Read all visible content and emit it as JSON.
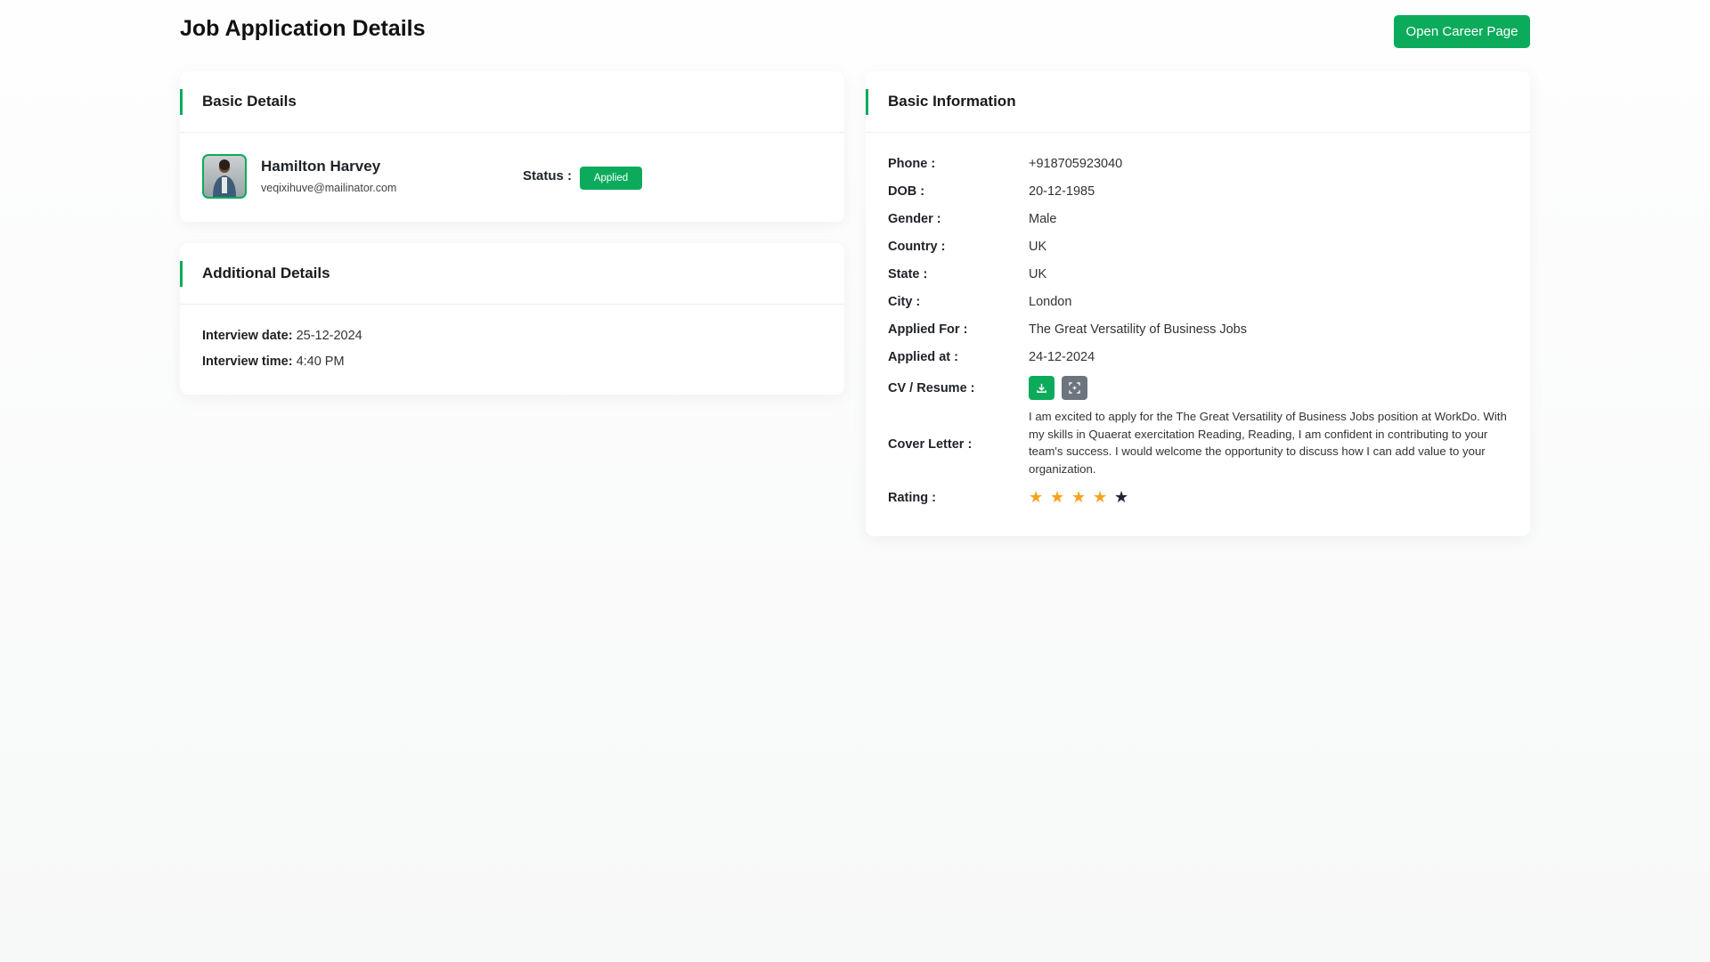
{
  "page": {
    "title": "Job Application Details",
    "open_career_label": "Open Career Page"
  },
  "basic_details": {
    "heading": "Basic Details",
    "name": "Hamilton Harvey",
    "email": "veqixihuve@mailinator.com",
    "status_label": "Status :",
    "status": "Applied"
  },
  "additional_details": {
    "heading": "Additional Details",
    "interview_date_label": "Interview date:",
    "interview_date": "25-12-2024",
    "interview_time_label": "Interview time:",
    "interview_time": "4:40 PM"
  },
  "basic_information": {
    "heading": "Basic Information",
    "rows": [
      {
        "label": "Phone :",
        "value": "+918705923040"
      },
      {
        "label": "DOB :",
        "value": "20-12-1985"
      },
      {
        "label": "Gender :",
        "value": "Male"
      },
      {
        "label": "Country :",
        "value": "UK"
      },
      {
        "label": "State :",
        "value": "UK"
      },
      {
        "label": "City :",
        "value": "London"
      },
      {
        "label": "Applied For :",
        "value": "The Great Versatility of Business Jobs"
      },
      {
        "label": "Applied at :",
        "value": "24-12-2024"
      }
    ],
    "cv_label": "CV / Resume :",
    "cv_icons": [
      "download-icon",
      "preview-icon"
    ],
    "cover_letter_label": "Cover Letter :",
    "cover_letter": "I am excited to apply for the The Great Versatility of Business Jobs position at WorkDo. With my skills in Quaerat exercitation Reading, Reading, I am confident in contributing to your team's success. I would welcome the opportunity to discuss how I can add value to your organization.",
    "rating_label": "Rating :",
    "rating": 4,
    "rating_max": 5
  },
  "colors": {
    "accent": "#0cab5c",
    "star_filled": "#f7a21b",
    "star_empty": "#1e2533",
    "secondary": "#6c757d"
  }
}
